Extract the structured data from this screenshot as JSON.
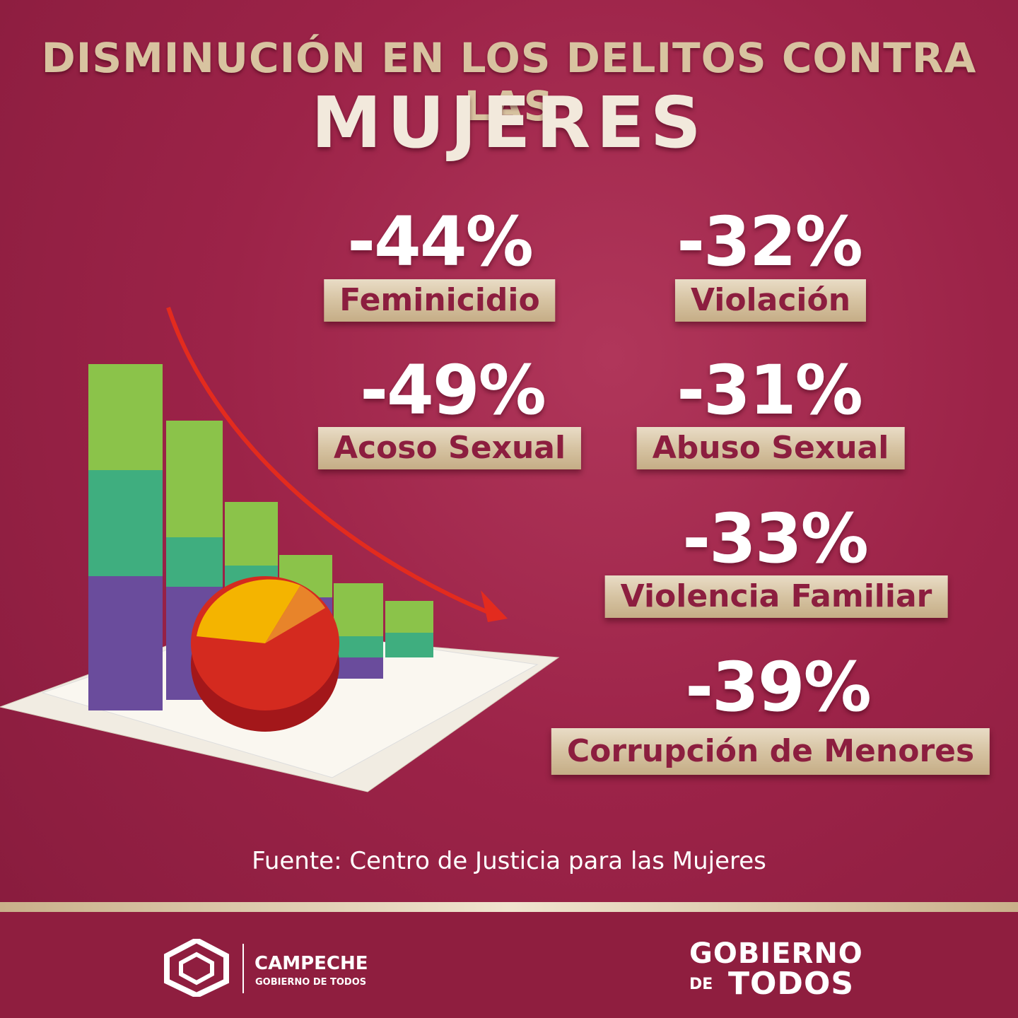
{
  "header": {
    "title": "DISMINUCIÓN EN LOS DELITOS CONTRA LAS",
    "subtitle": "MUJERES"
  },
  "stats": [
    {
      "value": "-44%",
      "label": "Feminicidio"
    },
    {
      "value": "-32%",
      "label": "Violación"
    },
    {
      "value": "-49%",
      "label": "Acoso Sexual"
    },
    {
      "value": "-31%",
      "label": "Abuso Sexual"
    },
    {
      "value": "-33%",
      "label": "Violencia Familiar"
    },
    {
      "value": "-39%",
      "label": "Corrupción de Menores"
    }
  ],
  "source": "Fuente: Centro de Justicia para las Mujeres",
  "footer": {
    "campeche": {
      "name": "CAMPECHE",
      "tagline": "GOBIERNO DE TODOS"
    },
    "gobierno": {
      "line1": "GOBIERNO",
      "line2a": "DE",
      "line2b": "TODOS"
    }
  }
}
